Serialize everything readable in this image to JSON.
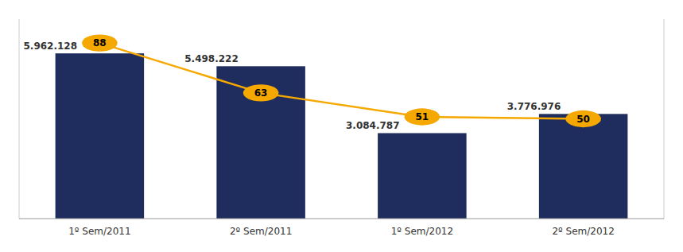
{
  "chart_data": {
    "type": "bar",
    "categories": [
      "1º Sem/2011",
      "2º Sem/2011",
      "1º Sem/2012",
      "2º Sem/2012"
    ],
    "series": [
      {
        "type": "bar",
        "color": "#1e2d5e",
        "values": [
          5962128,
          5498222,
          3084787,
          3776976
        ],
        "value_labels": [
          "5.962.128",
          "5.498.222",
          "3.084.787",
          "3.776.976"
        ]
      },
      {
        "type": "line",
        "axis": "y2",
        "color": "#f5a800",
        "marker": "ellipse",
        "values": [
          88,
          63,
          51,
          50
        ]
      }
    ],
    "ylim": [
      0,
      7200000
    ],
    "yticks": [],
    "y2lim": [
      0,
      100
    ],
    "y2ticks": [],
    "data_labels": true,
    "tick_labels": "x",
    "grid": false
  }
}
